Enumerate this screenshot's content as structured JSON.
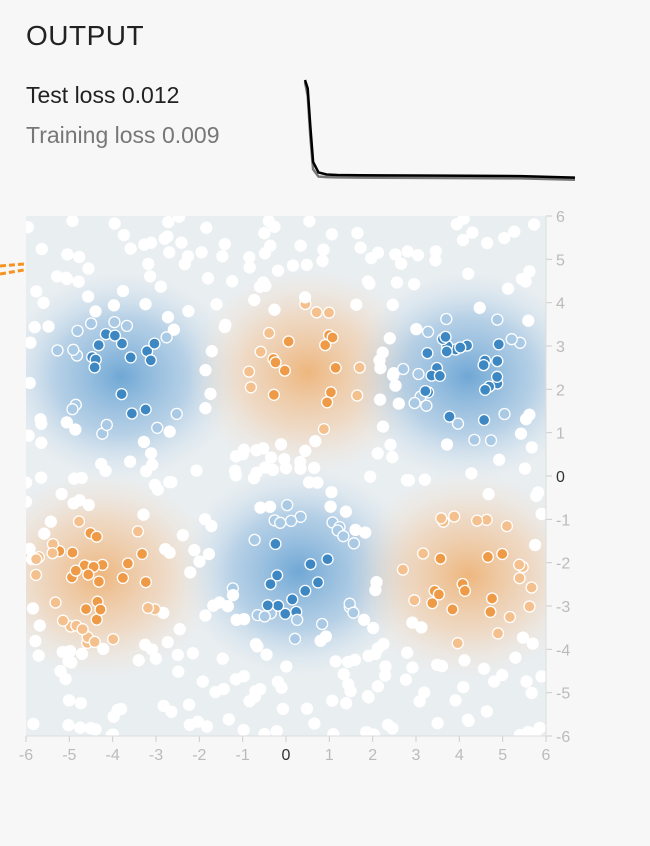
{
  "output": {
    "title": "OUTPUT",
    "test_loss_label": "Test loss",
    "test_loss_value": "0.012",
    "training_loss_label": "Training loss",
    "training_loss_value": "0.009"
  },
  "colors": {
    "positive": "#0877bd",
    "negative": "#f59322",
    "test_line": "#000000",
    "train_line": "#777777",
    "tick_zero": "#333333",
    "tick_other": "#bbbbbb"
  },
  "chart_data": [
    {
      "type": "line",
      "series": [
        {
          "x": [
            0,
            1,
            2,
            3,
            5,
            8,
            12,
            20,
            40,
            60,
            80,
            100
          ],
          "values": [
            1.0,
            0.92,
            0.55,
            0.22,
            0.12,
            0.1,
            0.095,
            0.093,
            0.09,
            0.088,
            0.085,
            0.07
          ]
        },
        {
          "x": [
            0,
            1,
            2,
            3,
            5,
            8,
            12,
            20,
            40,
            60,
            80,
            100
          ],
          "values": [
            0.98,
            0.85,
            0.45,
            0.15,
            0.08,
            0.075,
            0.072,
            0.07,
            0.068,
            0.066,
            0.063,
            0.05
          ]
        }
      ]
    },
    {
      "type": "heatmap",
      "x_ticks": [
        "-6",
        "-5",
        "-4",
        "-3",
        "-2",
        "-1",
        "0",
        "1",
        "2",
        "3",
        "4",
        "5",
        "6"
      ],
      "y_ticks": [
        "6",
        "5",
        "4",
        "3",
        "2",
        "1",
        "0",
        "-1",
        "-2",
        "-3",
        "-4",
        "-5",
        "-6"
      ],
      "xlim": [
        -6,
        6
      ],
      "ylim": [
        -6,
        6
      ],
      "regions": [
        {
          "cx": -3.8,
          "cy": 2.3,
          "sign": 1
        },
        {
          "cx": 0.5,
          "cy": 2.4,
          "sign": -1
        },
        {
          "cx": 4.2,
          "cy": 2.3,
          "sign": 1
        },
        {
          "cx": -4.3,
          "cy": -2.3,
          "sign": -1
        },
        {
          "cx": 0.3,
          "cy": -2.2,
          "sign": 1
        },
        {
          "cx": 4.2,
          "cy": -2.3,
          "sign": -1
        }
      ]
    }
  ]
}
